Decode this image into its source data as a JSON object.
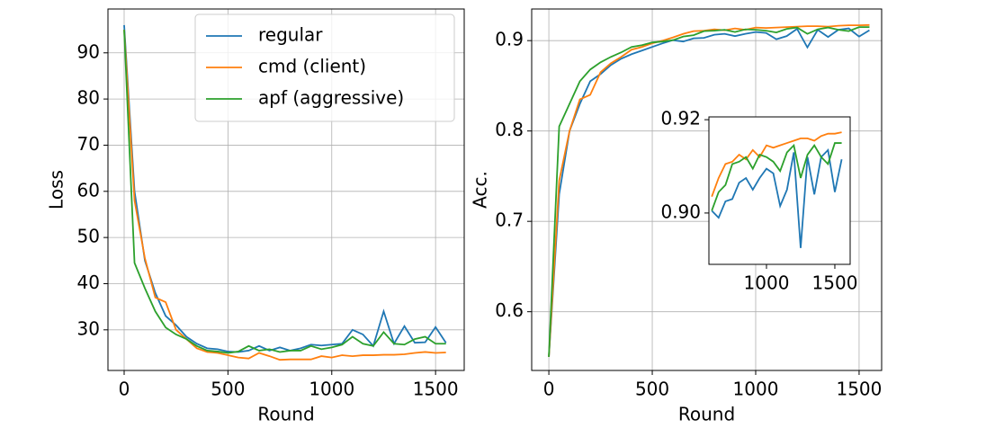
{
  "chart_data": [
    {
      "type": "line",
      "ylabel": "Loss",
      "xlabel": "Round",
      "grid": true,
      "legend": "upper right",
      "x": [
        0,
        50,
        100,
        150,
        200,
        250,
        300,
        350,
        400,
        450,
        500,
        550,
        600,
        650,
        700,
        750,
        800,
        850,
        900,
        950,
        1000,
        1050,
        1100,
        1150,
        1200,
        1250,
        1300,
        1350,
        1400,
        1450,
        1500,
        1550
      ],
      "xlim": [
        -78,
        1638
      ],
      "xticks": [
        0,
        500,
        1000,
        1500
      ],
      "ylim": [
        21.2,
        99.5
      ],
      "yticks": [
        30,
        40,
        50,
        60,
        70,
        80,
        90
      ],
      "series": [
        {
          "name": "regular",
          "color": "#1f77b4",
          "values": [
            96,
            60,
            45,
            38,
            33,
            31,
            28.5,
            27,
            26,
            25.8,
            25.3,
            25.2,
            25.5,
            26.5,
            25.5,
            26.2,
            25.5,
            26,
            26.8,
            26.6,
            26.8,
            27,
            30,
            29,
            26.5,
            34,
            27,
            30.8,
            27.2,
            27.3,
            30.6,
            27.2
          ]
        },
        {
          "name": "cmd (client)",
          "color": "#ff7f0e",
          "values": [
            95,
            58,
            45.5,
            37,
            36,
            30,
            28,
            26,
            25.2,
            25,
            24.5,
            24,
            23.8,
            25,
            24.3,
            23.5,
            23.6,
            23.6,
            23.6,
            24.3,
            24,
            24.5,
            24.3,
            24.5,
            24.5,
            24.6,
            24.6,
            24.7,
            25,
            25.2,
            25,
            25.1
          ]
        },
        {
          "name": "apf (aggressive)",
          "color": "#2ca02c",
          "values": [
            95,
            44.5,
            39,
            34,
            30.5,
            29,
            28,
            26.5,
            25.5,
            25.3,
            25,
            25.3,
            26.5,
            25.5,
            25.8,
            25.2,
            25.5,
            25.5,
            26.5,
            25.8,
            26.2,
            26.8,
            28.5,
            27,
            26.5,
            29.5,
            27,
            26.8,
            28,
            28.5,
            27,
            27
          ]
        }
      ]
    },
    {
      "type": "line",
      "ylabel": "Acc.",
      "xlabel": "Round",
      "grid": true,
      "x": [
        0,
        50,
        100,
        150,
        200,
        250,
        300,
        350,
        400,
        450,
        500,
        550,
        600,
        650,
        700,
        750,
        800,
        850,
        900,
        950,
        1000,
        1050,
        1100,
        1150,
        1200,
        1250,
        1300,
        1350,
        1400,
        1450,
        1500,
        1550
      ],
      "xlim": [
        -83,
        1609
      ],
      "xticks": [
        0,
        500,
        1000,
        1500
      ],
      "ylim": [
        0.535,
        0.935
      ],
      "yticks": [
        0.6,
        0.7,
        0.8,
        0.9
      ],
      "series": [
        {
          "color": "#1f77b4",
          "values": [
            0.55,
            0.73,
            0.8,
            0.83,
            0.855,
            0.863,
            0.873,
            0.88,
            0.885,
            0.889,
            0.893,
            0.897,
            0.9005,
            0.899,
            0.9025,
            0.903,
            0.9065,
            0.9075,
            0.905,
            0.9075,
            0.9095,
            0.9085,
            0.9015,
            0.905,
            0.913,
            0.8925,
            0.912,
            0.904,
            0.912,
            0.9135,
            0.9045,
            0.9115
          ]
        },
        {
          "color": "#ff7f0e",
          "values": [
            0.55,
            0.745,
            0.8,
            0.835,
            0.84,
            0.865,
            0.875,
            0.882,
            0.89,
            0.893,
            0.897,
            0.9,
            0.9035,
            0.9075,
            0.9105,
            0.911,
            0.9125,
            0.9115,
            0.9135,
            0.912,
            0.9145,
            0.914,
            0.9145,
            0.915,
            0.9155,
            0.916,
            0.916,
            0.9155,
            0.9165,
            0.917,
            0.917,
            0.9173
          ]
        },
        {
          "color": "#2ca02c",
          "values": [
            0.55,
            0.805,
            0.83,
            0.855,
            0.868,
            0.876,
            0.882,
            0.887,
            0.893,
            0.895,
            0.898,
            0.899,
            0.9005,
            0.9045,
            0.906,
            0.9105,
            0.911,
            0.912,
            0.9095,
            0.9125,
            0.912,
            0.911,
            0.909,
            0.913,
            0.9145,
            0.9075,
            0.9125,
            0.9145,
            0.912,
            0.9105,
            0.915,
            0.915
          ]
        }
      ]
    },
    {
      "type": "line",
      "grid": false,
      "x": [
        600,
        650,
        700,
        750,
        800,
        850,
        900,
        950,
        1000,
        1050,
        1100,
        1150,
        1200,
        1250,
        1300,
        1350,
        1400,
        1450,
        1500,
        1550
      ],
      "xlim": [
        579,
        1612
      ],
      "xticks": [
        1000,
        1500
      ],
      "ylim": [
        0.889,
        0.9206
      ],
      "yticks": [
        {
          "value": 0.9,
          "label": "0.90"
        },
        {
          "value": 0.92,
          "label": "0.92"
        }
      ],
      "series": [
        {
          "color": "#1f77b4",
          "values": [
            0.9005,
            0.899,
            0.9025,
            0.903,
            0.9065,
            0.9075,
            0.905,
            0.9075,
            0.9095,
            0.9085,
            0.9015,
            0.905,
            0.913,
            0.8925,
            0.912,
            0.904,
            0.912,
            0.9135,
            0.9045,
            0.9115
          ]
        },
        {
          "color": "#ff7f0e",
          "values": [
            0.9035,
            0.9075,
            0.9105,
            0.911,
            0.9125,
            0.9115,
            0.9135,
            0.912,
            0.9145,
            0.914,
            0.9145,
            0.915,
            0.9155,
            0.916,
            0.916,
            0.9155,
            0.9165,
            0.917,
            0.917,
            0.9173
          ]
        },
        {
          "color": "#2ca02c",
          "values": [
            0.9005,
            0.9045,
            0.906,
            0.9105,
            0.911,
            0.912,
            0.9095,
            0.9125,
            0.912,
            0.911,
            0.909,
            0.913,
            0.9145,
            0.9075,
            0.9125,
            0.9145,
            0.912,
            0.9105,
            0.915,
            0.915
          ]
        }
      ]
    }
  ]
}
